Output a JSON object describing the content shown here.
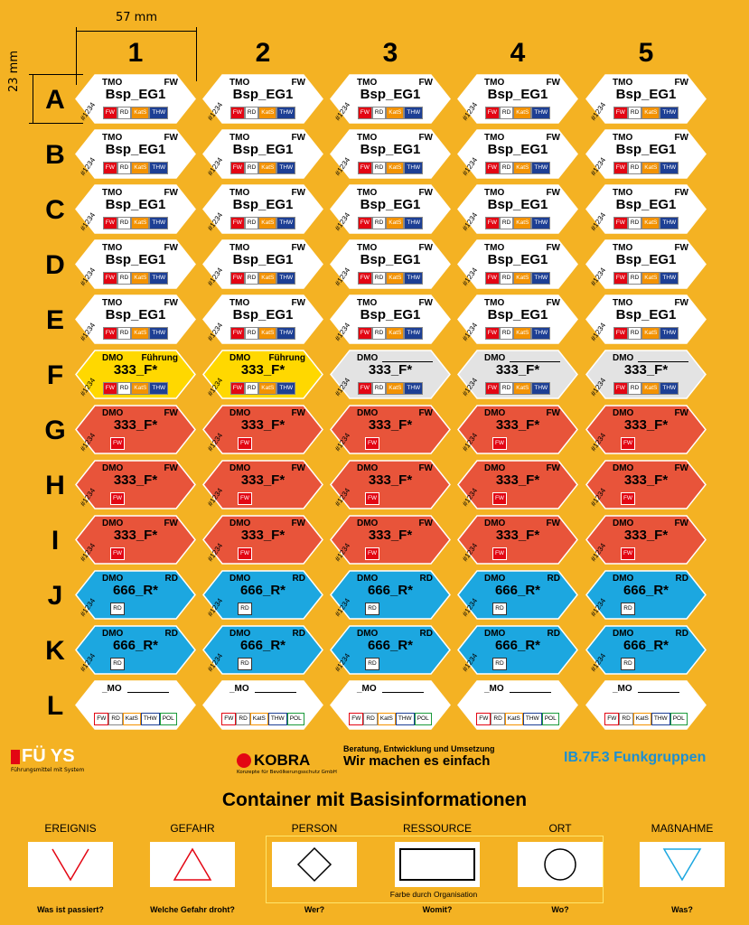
{
  "dimension": {
    "width_label": "57 mm",
    "height_label": "23 mm"
  },
  "columns": [
    "1",
    "2",
    "3",
    "4",
    "5"
  ],
  "rows": [
    "A",
    "B",
    "C",
    "D",
    "E",
    "F",
    "G",
    "H",
    "I",
    "J",
    "K",
    "L"
  ],
  "tag_id": "#1234",
  "tag_rows": [
    {
      "row": "A",
      "style": "white",
      "left": "TMO",
      "right": "FW",
      "name": "Bsp_EG1",
      "badges": [
        "FW",
        "RD",
        "KatS",
        "THW"
      ]
    },
    {
      "row": "B",
      "style": "white",
      "left": "TMO",
      "right": "FW",
      "name": "Bsp_EG1",
      "badges": [
        "FW",
        "RD",
        "KatS",
        "THW"
      ]
    },
    {
      "row": "C",
      "style": "white",
      "left": "TMO",
      "right": "FW",
      "name": "Bsp_EG1",
      "badges": [
        "FW",
        "RD",
        "KatS",
        "THW"
      ]
    },
    {
      "row": "D",
      "style": "white",
      "left": "TMO",
      "right": "FW",
      "name": "Bsp_EG1",
      "badges": [
        "FW",
        "RD",
        "KatS",
        "THW"
      ]
    },
    {
      "row": "E",
      "style": "white",
      "left": "TMO",
      "right": "FW",
      "name": "Bsp_EG1",
      "badges": [
        "FW",
        "RD",
        "KatS",
        "THW"
      ]
    },
    {
      "row": "F",
      "style": "mixed",
      "left": "DMO",
      "right": "Führung",
      "name": "333_F*",
      "badges": [
        "FW",
        "RD",
        "KatS",
        "THW"
      ]
    },
    {
      "row": "G",
      "style": "red",
      "left": "DMO",
      "right": "FW",
      "name": "333_F*",
      "badges": [
        "FW"
      ]
    },
    {
      "row": "H",
      "style": "red",
      "left": "DMO",
      "right": "FW",
      "name": "333_F*",
      "badges": [
        "FW"
      ]
    },
    {
      "row": "I",
      "style": "red",
      "left": "DMO",
      "right": "FW",
      "name": "333_F*",
      "badges": [
        "FW"
      ]
    },
    {
      "row": "J",
      "style": "blue",
      "left": "DMO",
      "right": "RD",
      "name": "666_R*",
      "badges": [
        "RD"
      ]
    },
    {
      "row": "K",
      "style": "blue",
      "left": "DMO",
      "right": "RD",
      "name": "666_R*",
      "badges": [
        "RD"
      ]
    },
    {
      "row": "L",
      "style": "blank",
      "left": "_MO",
      "right": "",
      "name": "",
      "badges": [
        "FW",
        "RD",
        "KatS",
        "THW",
        "POL"
      ]
    }
  ],
  "colors": {
    "background": "#f4b223",
    "white": "#ffffff",
    "yellow": "#ffd800",
    "grey": "#e3e3e3",
    "red": "#e8543a",
    "blue": "#1ca7e0"
  },
  "footer": {
    "logo1_text": "FÜ YS",
    "logo1_sub": "Führungsmittel mit System",
    "logo2_text": "KOBRA",
    "logo2_sub": "Konzepte für Bevölkerungsschutz GmbH",
    "slogan_small": "Beratung, Entwicklung und Umsetzung",
    "slogan_big": "Wir machen es einfach",
    "code": "IB.7F.3 Funkgruppen",
    "title": "Container mit Basisinformationen",
    "farbe_note": "Farbe durch Organisation",
    "categories": [
      {
        "label": "EREIGNIS",
        "question": "Was ist passiert?",
        "icon": "down-triangle-open-icon"
      },
      {
        "label": "GEFAHR",
        "question": "Welche Gefahr droht?",
        "icon": "triangle-icon"
      },
      {
        "label": "PERSON",
        "question": "Wer?",
        "icon": "diamond-icon"
      },
      {
        "label": "RESSOURCE",
        "question": "Womit?",
        "icon": "rectangle-icon"
      },
      {
        "label": "ORT",
        "question": "Wo?",
        "icon": "circle-icon"
      },
      {
        "label": "MAßNAHME",
        "question": "Was?",
        "icon": "down-triangle-icon"
      }
    ]
  }
}
